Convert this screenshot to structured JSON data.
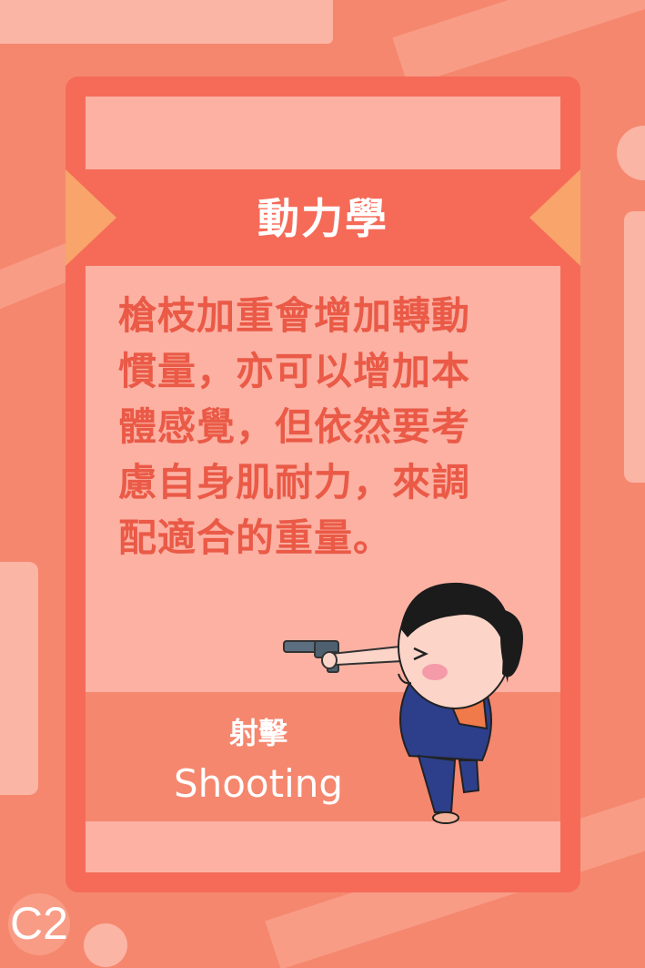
{
  "card": {
    "title": "動力學",
    "body": "槍枝加重會增加轉動\n慣量，亦可以增加本\n體感覺，但依然要考\n慮自身肌耐力，來調\n配適合的重量。",
    "label_zh": "射擊",
    "label_en": "Shooting"
  },
  "badge": {
    "code": "C2"
  },
  "colors": {
    "background": "#f5876f",
    "frame": "#f56b58",
    "panel": "#fcb1a3",
    "accent": "#f8a46a",
    "text_red": "#ea5a47"
  },
  "illustration": {
    "subject": "cartoon-shooter-icon"
  }
}
